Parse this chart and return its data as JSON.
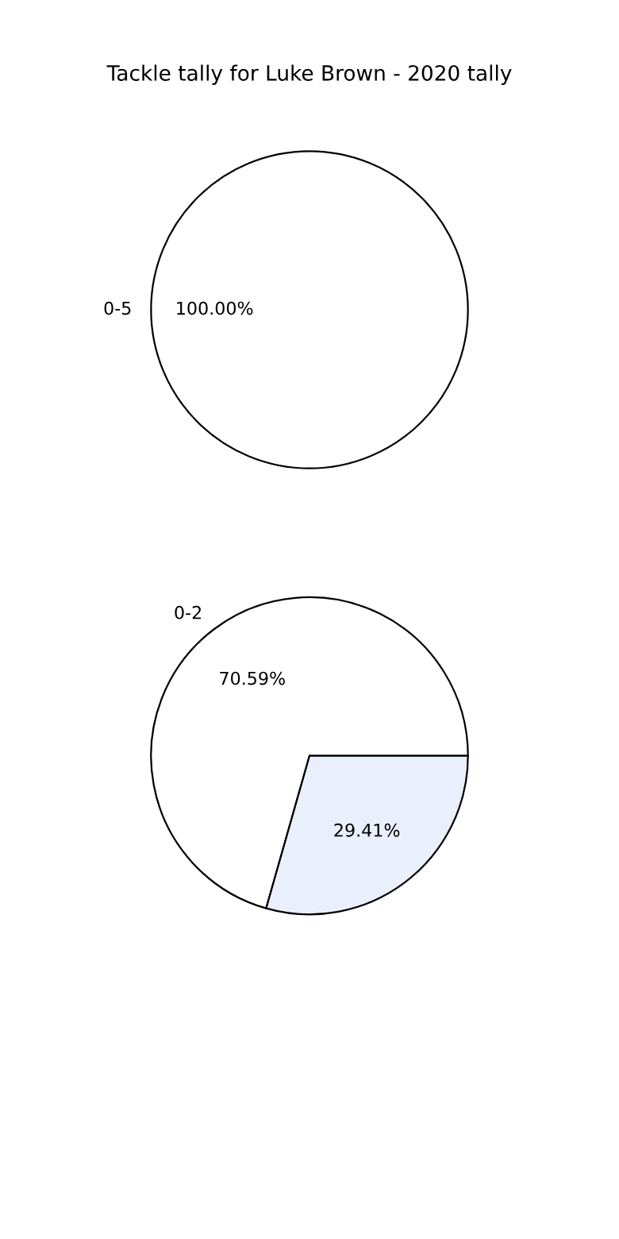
{
  "chart_data": [
    {
      "type": "pie",
      "title": "Tackle tally for Luke Brown - 2020 tally",
      "categories": [
        "0-5"
      ],
      "values": [
        100
      ],
      "colors": [
        "#ffffff"
      ],
      "value_labels": [
        "100.00%"
      ]
    },
    {
      "type": "pie",
      "categories": [
        "0-2",
        null
      ],
      "values": [
        70.59,
        29.41
      ],
      "colors": [
        "#ffffff",
        "#eaf0fb"
      ],
      "value_labels": [
        "70.59%",
        "29.41%"
      ]
    }
  ]
}
